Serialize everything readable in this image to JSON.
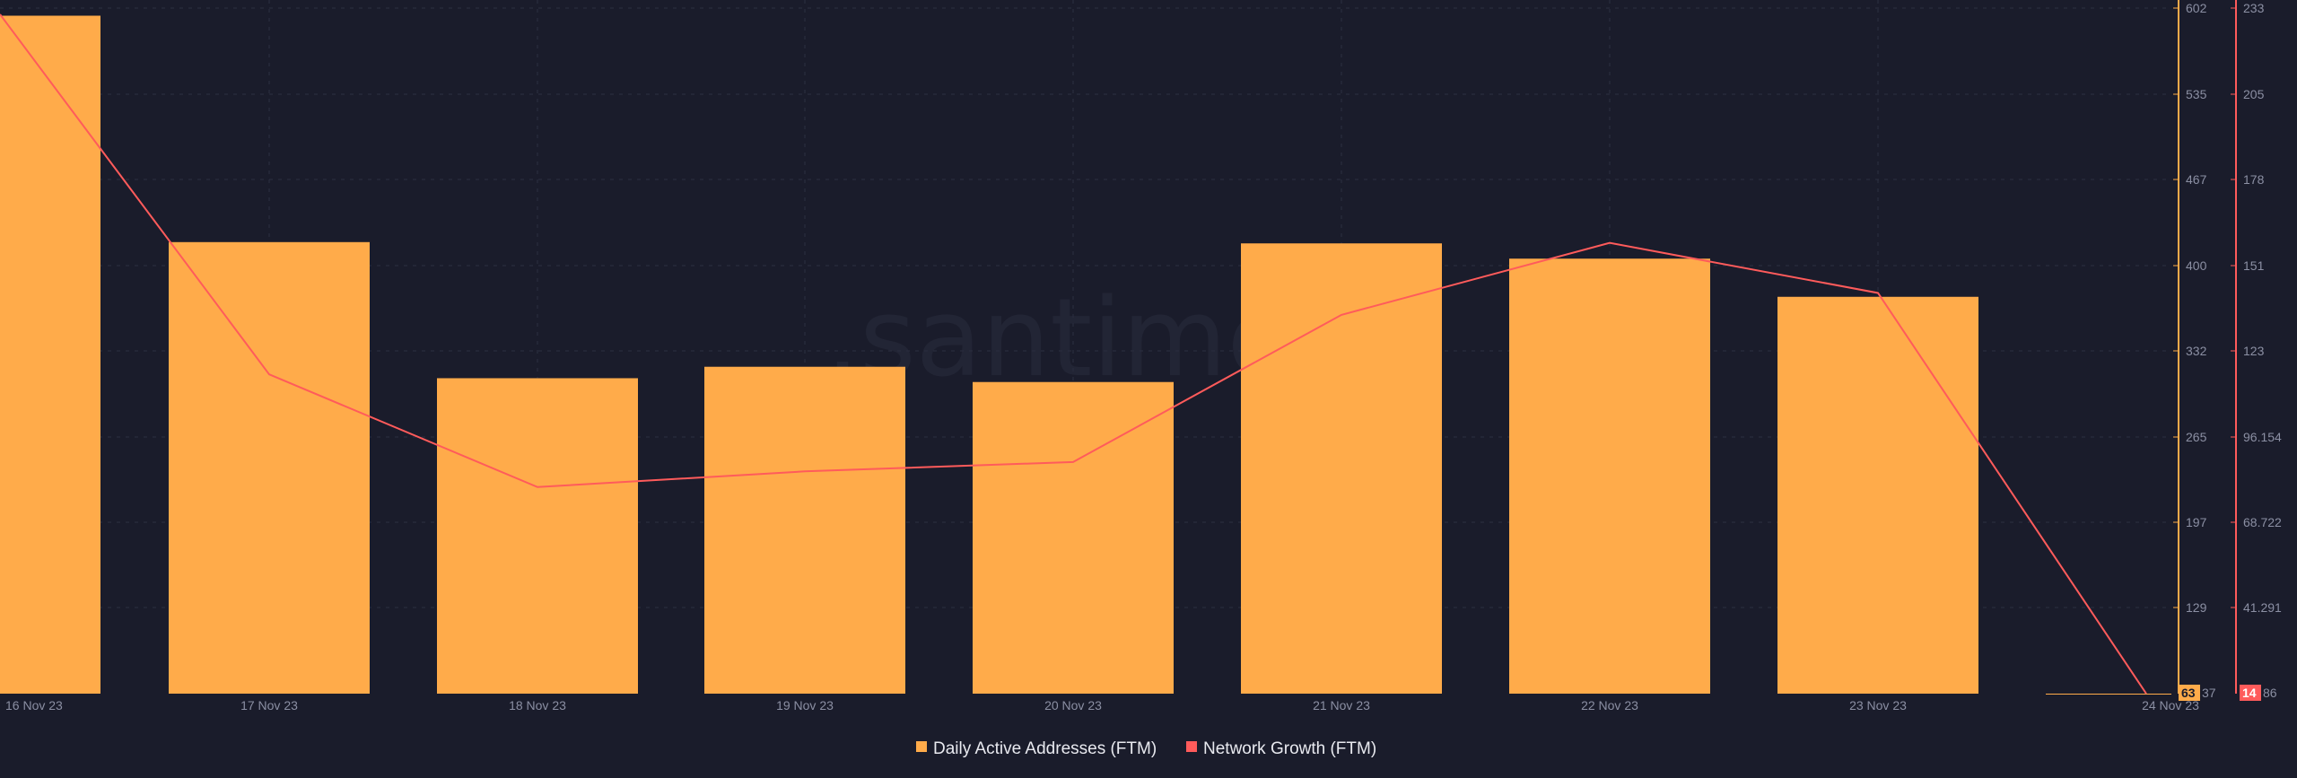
{
  "watermark": ".santiment",
  "colors": {
    "background": "#1a1c2b",
    "grid": "#2c2f40",
    "bar": "#ffab4a",
    "line": "#ff5b5b",
    "axis_text": "#8b8fa3",
    "legend_text": "#e8e9ef"
  },
  "chart_data": {
    "type": "bar",
    "categories": [
      "16 Nov 23",
      "17 Nov 23",
      "18 Nov 23",
      "19 Nov 23",
      "20 Nov 23",
      "21 Nov 23",
      "22 Nov 23",
      "23 Nov 23",
      "24 Nov 23"
    ],
    "series": [
      {
        "name": "Daily Active Addresses (FTM)",
        "type": "bar",
        "axis": "right-1",
        "color": "#ffab4a",
        "values": [
          596,
          418,
          311,
          320,
          308,
          417,
          405,
          375,
          63
        ]
      },
      {
        "name": "Network Growth (FTM)",
        "type": "line",
        "axis": "right-2",
        "color": "#ff5b5b",
        "values": [
          231,
          116,
          80,
          85,
          88,
          135,
          158,
          142,
          14
        ]
      }
    ],
    "y_axis_1": {
      "ticks": [
        "602",
        "535",
        "467",
        "400",
        "332",
        "265",
        "197",
        "129"
      ],
      "min_label": "63",
      "min_suffix": "37",
      "ylim": [
        63,
        602
      ]
    },
    "y_axis_2": {
      "ticks": [
        "233",
        "205",
        "178",
        "151",
        "123",
        "96.154",
        "68.722",
        "41.291"
      ],
      "min_label": "14",
      "min_suffix": "86",
      "ylim": [
        14,
        233
      ]
    },
    "legend": {
      "position": "bottom-center",
      "items": [
        "Daily Active Addresses (FTM)",
        "Network Growth (FTM)"
      ]
    },
    "grid": true
  }
}
